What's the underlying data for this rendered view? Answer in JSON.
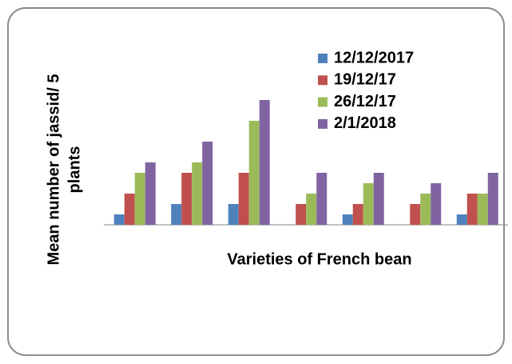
{
  "chart_data": {
    "type": "bar",
    "xlabel": "Varieties of French bean",
    "ylabel": [
      "Mean number of jassid/ 5",
      "plants"
    ],
    "categories": [
      null,
      null,
      null,
      null,
      null,
      null,
      null
    ],
    "series": [
      {
        "name": "12/12/2017",
        "color": "#4f81bd",
        "values": [
          1,
          2,
          2,
          0,
          1,
          0,
          1
        ]
      },
      {
        "name": "19/12/17",
        "color": "#c0504d",
        "values": [
          3,
          5,
          5,
          2,
          2,
          2,
          3
        ]
      },
      {
        "name": "26/12/17",
        "color": "#9bbb59",
        "values": [
          5,
          6,
          10,
          3,
          4,
          3,
          3
        ]
      },
      {
        "name": "2/1/2018",
        "color": "#8064a2",
        "values": [
          6,
          8,
          12,
          5,
          5,
          4,
          5
        ]
      }
    ],
    "ylim": [
      0,
      14
    ],
    "legend": "top-right"
  }
}
